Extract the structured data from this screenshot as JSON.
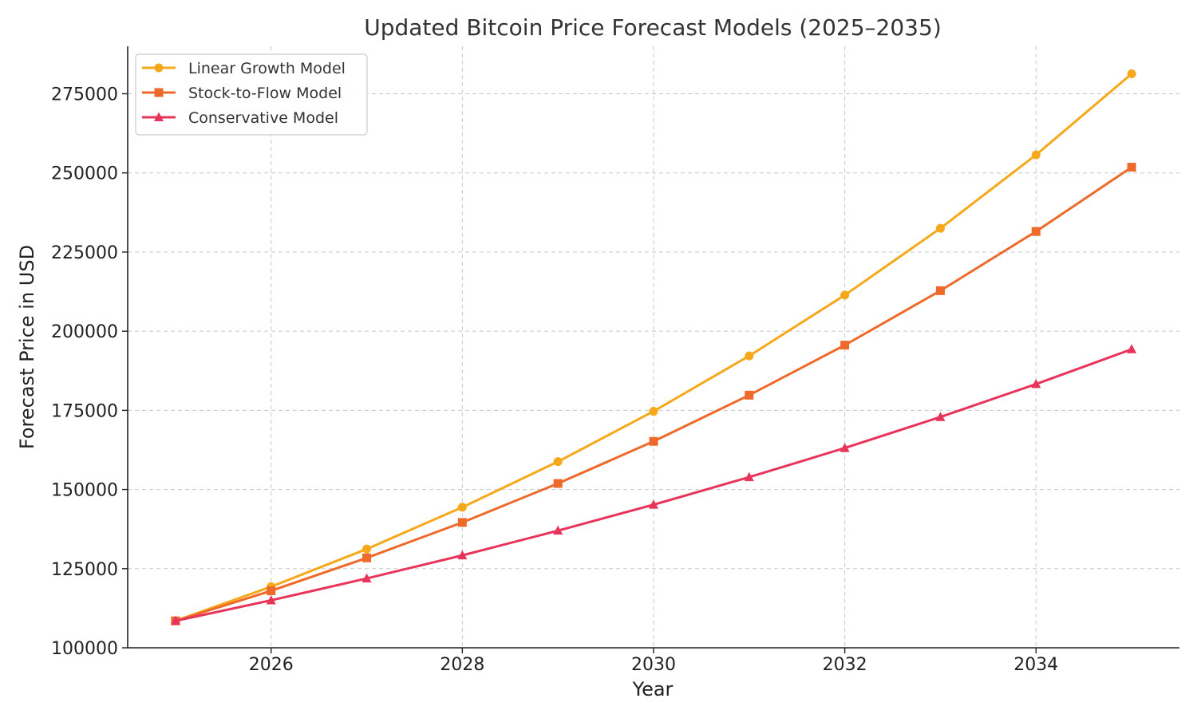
{
  "chart_data": {
    "type": "line",
    "title": "Updated Bitcoin Price Forecast Models (2025–2035)",
    "xlabel": "Year",
    "ylabel": "Forecast Price in USD",
    "x": [
      2025,
      2026,
      2027,
      2028,
      2029,
      2030,
      2031,
      2032,
      2033,
      2034,
      2035
    ],
    "xlim": [
      2024.5,
      2035.5
    ],
    "ylim": [
      100000,
      290000
    ],
    "x_ticks": [
      2026,
      2028,
      2030,
      2032,
      2034
    ],
    "y_ticks": [
      100000,
      125000,
      150000,
      175000,
      200000,
      225000,
      250000,
      275000
    ],
    "grid": true,
    "legend_position": "top-left",
    "series": [
      {
        "name": "Linear Growth Model",
        "color": "#F5A81A",
        "marker": "circle",
        "values": [
          108500,
          119300,
          131200,
          144400,
          158800,
          174700,
          192200,
          211400,
          232500,
          255700,
          281300
        ]
      },
      {
        "name": "Stock-to-Flow Model",
        "color": "#EE6A2A",
        "marker": "square",
        "values": [
          108500,
          118000,
          128400,
          139600,
          151900,
          165200,
          179800,
          195600,
          212800,
          231500,
          251800
        ]
      },
      {
        "name": "Conservative Model",
        "color": "#E8345A",
        "marker": "triangle",
        "values": [
          108500,
          115000,
          121900,
          129200,
          137000,
          145200,
          153900,
          163100,
          172900,
          183300,
          194300
        ]
      }
    ]
  }
}
